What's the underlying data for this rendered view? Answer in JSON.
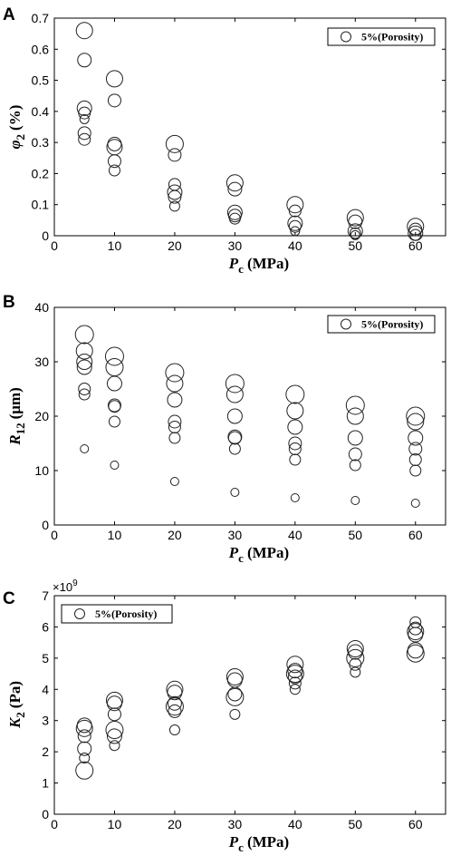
{
  "chart_data": [
    {
      "type": "scatter",
      "panel": "A",
      "ylabel_symbol": "φ",
      "ylabel_sub": "2",
      "ylabel_unit": "(%)",
      "xlabel_symbol": "P",
      "xlabel_sub": "c",
      "xlabel_unit": "(MPa)",
      "xlim": [
        0,
        65
      ],
      "ylim": [
        0,
        0.7
      ],
      "xticks": [
        "0",
        "10",
        "20",
        "30",
        "40",
        "50",
        "60"
      ],
      "yticks": [
        "0",
        "0.1",
        "0.2",
        "0.3",
        "0.4",
        "0.5",
        "0.6",
        "0.7"
      ],
      "legend": "5%(Porosity)",
      "legend_position": "top-right",
      "series": [
        {
          "name": "5%(Porosity)",
          "points": [
            {
              "x": 5,
              "y": 0.66,
              "r": 9
            },
            {
              "x": 5,
              "y": 0.565,
              "r": 7.5
            },
            {
              "x": 5,
              "y": 0.41,
              "r": 8
            },
            {
              "x": 5,
              "y": 0.395,
              "r": 6.5
            },
            {
              "x": 5,
              "y": 0.375,
              "r": 5
            },
            {
              "x": 5,
              "y": 0.33,
              "r": 7
            },
            {
              "x": 5,
              "y": 0.31,
              "r": 6.5
            },
            {
              "x": 10,
              "y": 0.505,
              "r": 9
            },
            {
              "x": 10,
              "y": 0.435,
              "r": 7
            },
            {
              "x": 10,
              "y": 0.295,
              "r": 7.5
            },
            {
              "x": 10,
              "y": 0.285,
              "r": 8.5
            },
            {
              "x": 10,
              "y": 0.24,
              "r": 7
            },
            {
              "x": 10,
              "y": 0.21,
              "r": 6
            },
            {
              "x": 20,
              "y": 0.295,
              "r": 9.5
            },
            {
              "x": 20,
              "y": 0.26,
              "r": 7
            },
            {
              "x": 20,
              "y": 0.165,
              "r": 6.5
            },
            {
              "x": 20,
              "y": 0.14,
              "r": 8
            },
            {
              "x": 20,
              "y": 0.125,
              "r": 7
            },
            {
              "x": 20,
              "y": 0.095,
              "r": 5.5
            },
            {
              "x": 30,
              "y": 0.17,
              "r": 9
            },
            {
              "x": 30,
              "y": 0.15,
              "r": 7.5
            },
            {
              "x": 30,
              "y": 0.075,
              "r": 8
            },
            {
              "x": 30,
              "y": 0.065,
              "r": 7
            },
            {
              "x": 30,
              "y": 0.055,
              "r": 6
            },
            {
              "x": 40,
              "y": 0.1,
              "r": 9
            },
            {
              "x": 40,
              "y": 0.08,
              "r": 6.5
            },
            {
              "x": 40,
              "y": 0.04,
              "r": 8
            },
            {
              "x": 40,
              "y": 0.03,
              "r": 6.5
            },
            {
              "x": 40,
              "y": 0.015,
              "r": 5
            },
            {
              "x": 50,
              "y": 0.058,
              "r": 9
            },
            {
              "x": 50,
              "y": 0.045,
              "r": 7.5
            },
            {
              "x": 50,
              "y": 0.015,
              "r": 8
            },
            {
              "x": 50,
              "y": 0.008,
              "r": 6
            },
            {
              "x": 50,
              "y": 0.002,
              "r": 5
            },
            {
              "x": 60,
              "y": 0.03,
              "r": 9
            },
            {
              "x": 60,
              "y": 0.02,
              "r": 7
            },
            {
              "x": 60,
              "y": 0.008,
              "r": 8
            },
            {
              "x": 60,
              "y": 0.003,
              "r": 6
            }
          ]
        }
      ]
    },
    {
      "type": "scatter",
      "panel": "B",
      "ylabel_symbol": "R",
      "ylabel_sub": "12",
      "ylabel_unit": "(μm)",
      "xlabel_symbol": "P",
      "xlabel_sub": "c",
      "xlabel_unit": "(MPa)",
      "xlim": [
        0,
        65
      ],
      "ylim": [
        0,
        40
      ],
      "xticks": [
        "0",
        "10",
        "20",
        "30",
        "40",
        "50",
        "60"
      ],
      "yticks": [
        "0",
        "10",
        "20",
        "30",
        "40"
      ],
      "legend": "5%(Porosity)",
      "legend_position": "top-right",
      "series": [
        {
          "name": "5%(Porosity)",
          "points": [
            {
              "x": 5,
              "y": 35,
              "r": 10
            },
            {
              "x": 5,
              "y": 32,
              "r": 9
            },
            {
              "x": 5,
              "y": 30,
              "r": 8.5
            },
            {
              "x": 5,
              "y": 29,
              "r": 8
            },
            {
              "x": 5,
              "y": 25,
              "r": 6.5
            },
            {
              "x": 5,
              "y": 24,
              "r": 6
            },
            {
              "x": 5,
              "y": 14,
              "r": 4.5
            },
            {
              "x": 10,
              "y": 31,
              "r": 10
            },
            {
              "x": 10,
              "y": 29,
              "r": 9.5
            },
            {
              "x": 10,
              "y": 26,
              "r": 8
            },
            {
              "x": 10,
              "y": 22,
              "r": 7
            },
            {
              "x": 10,
              "y": 21.8,
              "r": 6.5
            },
            {
              "x": 10,
              "y": 19,
              "r": 6
            },
            {
              "x": 10,
              "y": 11,
              "r": 4.5
            },
            {
              "x": 20,
              "y": 28,
              "r": 10
            },
            {
              "x": 20,
              "y": 26,
              "r": 9
            },
            {
              "x": 20,
              "y": 23,
              "r": 8
            },
            {
              "x": 20,
              "y": 19,
              "r": 7
            },
            {
              "x": 20,
              "y": 18,
              "r": 6.5
            },
            {
              "x": 20,
              "y": 16,
              "r": 6
            },
            {
              "x": 20,
              "y": 8,
              "r": 4.5
            },
            {
              "x": 30,
              "y": 26,
              "r": 10
            },
            {
              "x": 30,
              "y": 24,
              "r": 9
            },
            {
              "x": 30,
              "y": 20,
              "r": 8
            },
            {
              "x": 30,
              "y": 16.2,
              "r": 7.5
            },
            {
              "x": 30,
              "y": 16,
              "r": 7
            },
            {
              "x": 30,
              "y": 14,
              "r": 6
            },
            {
              "x": 30,
              "y": 6,
              "r": 4.5
            },
            {
              "x": 40,
              "y": 24,
              "r": 10
            },
            {
              "x": 40,
              "y": 21,
              "r": 9
            },
            {
              "x": 40,
              "y": 18,
              "r": 8
            },
            {
              "x": 40,
              "y": 15,
              "r": 7
            },
            {
              "x": 40,
              "y": 14,
              "r": 6.5
            },
            {
              "x": 40,
              "y": 12,
              "r": 6
            },
            {
              "x": 40,
              "y": 5,
              "r": 4.5
            },
            {
              "x": 50,
              "y": 22,
              "r": 10
            },
            {
              "x": 50,
              "y": 20,
              "r": 9
            },
            {
              "x": 50,
              "y": 16,
              "r": 8
            },
            {
              "x": 50,
              "y": 13,
              "r": 7
            },
            {
              "x": 50,
              "y": 11,
              "r": 6
            },
            {
              "x": 50,
              "y": 4.5,
              "r": 4.5
            },
            {
              "x": 60,
              "y": 20,
              "r": 10
            },
            {
              "x": 60,
              "y": 19,
              "r": 9
            },
            {
              "x": 60,
              "y": 16,
              "r": 8
            },
            {
              "x": 60,
              "y": 14,
              "r": 7
            },
            {
              "x": 60,
              "y": 12,
              "r": 6.5
            },
            {
              "x": 60,
              "y": 10,
              "r": 6
            },
            {
              "x": 60,
              "y": 4,
              "r": 4.5
            }
          ]
        }
      ]
    },
    {
      "type": "scatter",
      "panel": "C",
      "ylabel_symbol": "K",
      "ylabel_sub": "2",
      "ylabel_unit": "(Pa)",
      "xlabel_symbol": "P",
      "xlabel_sub": "c",
      "xlabel_unit": "(MPa)",
      "xlim": [
        0,
        65
      ],
      "ylim": [
        0,
        7
      ],
      "y_multiplier": "×10",
      "y_multiplier_exp": "9",
      "xticks": [
        "0",
        "10",
        "20",
        "30",
        "40",
        "50",
        "60"
      ],
      "yticks": [
        "0",
        "1",
        "2",
        "3",
        "4",
        "5",
        "6",
        "7"
      ],
      "legend": "5%(Porosity)",
      "legend_position": "top-left",
      "series": [
        {
          "name": "5%(Porosity)",
          "points": [
            {
              "x": 5,
              "y": 2.85,
              "r": 8
            },
            {
              "x": 5,
              "y": 2.75,
              "r": 9
            },
            {
              "x": 5,
              "y": 2.5,
              "r": 7
            },
            {
              "x": 5,
              "y": 2.1,
              "r": 7.5
            },
            {
              "x": 5,
              "y": 1.8,
              "r": 5.5
            },
            {
              "x": 5,
              "y": 1.4,
              "r": 9.5
            },
            {
              "x": 10,
              "y": 3.65,
              "r": 9
            },
            {
              "x": 10,
              "y": 3.55,
              "r": 8
            },
            {
              "x": 10,
              "y": 3.2,
              "r": 7
            },
            {
              "x": 10,
              "y": 2.7,
              "r": 9.5
            },
            {
              "x": 10,
              "y": 2.5,
              "r": 8
            },
            {
              "x": 10,
              "y": 2.2,
              "r": 5.5
            },
            {
              "x": 20,
              "y": 4.0,
              "r": 9
            },
            {
              "x": 20,
              "y": 3.9,
              "r": 8
            },
            {
              "x": 20,
              "y": 3.55,
              "r": 7.5
            },
            {
              "x": 20,
              "y": 3.45,
              "r": 9.5
            },
            {
              "x": 20,
              "y": 3.3,
              "r": 7
            },
            {
              "x": 20,
              "y": 2.7,
              "r": 5.5
            },
            {
              "x": 30,
              "y": 4.4,
              "r": 9
            },
            {
              "x": 30,
              "y": 4.3,
              "r": 8
            },
            {
              "x": 30,
              "y": 3.85,
              "r": 7.5
            },
            {
              "x": 30,
              "y": 3.75,
              "r": 9.5
            },
            {
              "x": 30,
              "y": 3.2,
              "r": 5.5
            },
            {
              "x": 40,
              "y": 4.8,
              "r": 9
            },
            {
              "x": 40,
              "y": 4.6,
              "r": 8
            },
            {
              "x": 40,
              "y": 4.5,
              "r": 9.5
            },
            {
              "x": 40,
              "y": 4.4,
              "r": 7.5
            },
            {
              "x": 40,
              "y": 4.2,
              "r": 6.5
            },
            {
              "x": 40,
              "y": 4.0,
              "r": 5.5
            },
            {
              "x": 50,
              "y": 5.3,
              "r": 9
            },
            {
              "x": 50,
              "y": 5.2,
              "r": 8
            },
            {
              "x": 50,
              "y": 5.0,
              "r": 9.5
            },
            {
              "x": 50,
              "y": 4.8,
              "r": 6.5
            },
            {
              "x": 50,
              "y": 4.55,
              "r": 5.5
            },
            {
              "x": 60,
              "y": 6.15,
              "r": 6
            },
            {
              "x": 60,
              "y": 5.95,
              "r": 7
            },
            {
              "x": 60,
              "y": 5.85,
              "r": 9
            },
            {
              "x": 60,
              "y": 5.75,
              "r": 8
            },
            {
              "x": 60,
              "y": 5.25,
              "r": 8.5
            },
            {
              "x": 60,
              "y": 5.15,
              "r": 9.5
            }
          ]
        }
      ]
    }
  ]
}
